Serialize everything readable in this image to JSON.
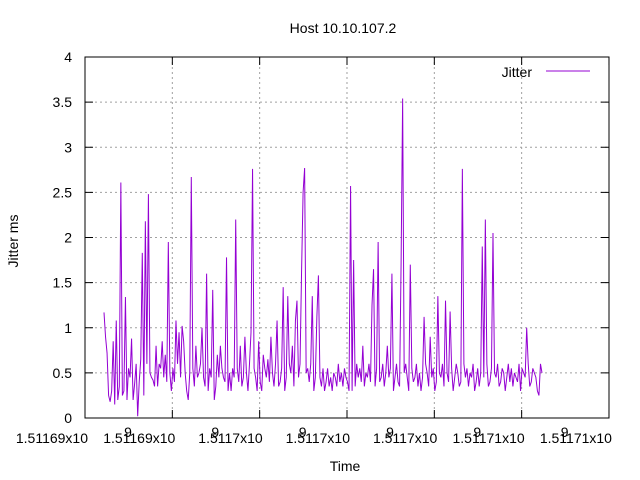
{
  "chart_data": {
    "type": "line",
    "title": "Host 10.10.107.2",
    "xlabel": "Time",
    "ylabel": "Jitter ms",
    "x_tick_labels": [
      "1.51169x10",
      "1.51169x10",
      "1.5117x10",
      "1.5117x10",
      "1.5117x10",
      "1.51171x10",
      "1.51171x10"
    ],
    "x_tick_exponent": "9",
    "y_ticks": [
      "0",
      "0.5",
      "1",
      "1.5",
      "2",
      "2.5",
      "3",
      "3.5",
      "4"
    ],
    "ylim": [
      0,
      4
    ],
    "grid": true,
    "legend": "top-right",
    "series": [
      {
        "name": "Jitter",
        "color": "#9400d3",
        "y": [
          1.17,
          0.9,
          0.72,
          0.25,
          0.18,
          0.3,
          0.85,
          0.15,
          1.08,
          0.2,
          0.35,
          2.61,
          0.25,
          0.3,
          1.34,
          0.2,
          0.55,
          0.45,
          0.88,
          0.2,
          0.38,
          0.6,
          0.02,
          0.4,
          0.65,
          1.83,
          0.25,
          2.18,
          0.6,
          2.48,
          0.5,
          0.45,
          0.42,
          0.35,
          0.8,
          0.35,
          0.6,
          0.55,
          0.85,
          0.45,
          0.7,
          0.4,
          1.95,
          0.5,
          0.3,
          0.55,
          0.4,
          1.08,
          0.6,
          0.95,
          0.45,
          1.02,
          0.85,
          0.5,
          0.3,
          0.2,
          0.5,
          2.67,
          0.55,
          0.35,
          0.8,
          0.45,
          0.5,
          0.6,
          1.0,
          0.45,
          0.35,
          1.6,
          0.3,
          0.55,
          0.45,
          1.42,
          0.2,
          0.35,
          0.7,
          0.45,
          0.8,
          0.55,
          0.45,
          0.4,
          1.78,
          0.3,
          0.5,
          0.3,
          0.55,
          0.45,
          2.2,
          0.55,
          0.4,
          0.8,
          0.35,
          0.45,
          0.9,
          0.5,
          0.3,
          0.6,
          0.95,
          2.76,
          0.55,
          0.45,
          0.3,
          0.85,
          0.4,
          0.3,
          0.7,
          0.55,
          0.45,
          0.65,
          0.4,
          0.9,
          0.5,
          0.35,
          0.6,
          1.08,
          0.35,
          0.4,
          0.55,
          1.45,
          0.3,
          0.45,
          1.35,
          0.6,
          0.5,
          0.8,
          0.35,
          1.08,
          1.3,
          0.45,
          0.6,
          1.62,
          2.5,
          2.77,
          0.5,
          0.55,
          0.4,
          0.6,
          1.35,
          0.3,
          0.45,
          1.12,
          1.58,
          0.45,
          0.35,
          0.55,
          0.3,
          0.4,
          0.55,
          0.35,
          0.45,
          0.3,
          0.5,
          0.45,
          0.35,
          0.6,
          0.4,
          0.5,
          0.35,
          0.55,
          0.45,
          0.4,
          0.3,
          2.57,
          0.3,
          1.75,
          0.35,
          0.6,
          0.45,
          0.55,
          0.4,
          0.8,
          0.35,
          0.5,
          0.45,
          0.6,
          0.4,
          1.25,
          1.65,
          0.35,
          0.55,
          1.95,
          0.4,
          0.45,
          0.6,
          0.35,
          0.5,
          0.8,
          0.45,
          0.55,
          1.6,
          0.3,
          0.45,
          0.6,
          0.4,
          0.35,
          1.72,
          3.54,
          0.5,
          0.6,
          0.45,
          0.3,
          1.7,
          0.55,
          0.4,
          0.45,
          0.6,
          0.35,
          0.5,
          0.3,
          0.45,
          1.12,
          0.6,
          0.5,
          0.35,
          0.9,
          0.45,
          0.55,
          0.3,
          0.4,
          1.35,
          0.5,
          0.45,
          0.6,
          0.35,
          1.3,
          0.5,
          0.4,
          1.18,
          0.55,
          0.3,
          0.45,
          0.6,
          0.5,
          0.35,
          0.4,
          2.76,
          0.6,
          0.45,
          0.55,
          0.35,
          0.5,
          0.45,
          0.6,
          0.3,
          0.4,
          0.55,
          0.35,
          0.5,
          1.9,
          0.45,
          2.2,
          0.6,
          0.35,
          0.4,
          0.55,
          2.05,
          0.5,
          0.45,
          0.6,
          0.35,
          0.4,
          0.55,
          0.5,
          0.3,
          0.45,
          0.6,
          0.4,
          0.55,
          0.35,
          0.5,
          0.45,
          0.4,
          0.6,
          0.3,
          0.55,
          0.5,
          0.45,
          1.0,
          0.6,
          0.35,
          0.4,
          0.55,
          0.5,
          0.45,
          0.3,
          0.25,
          0.6,
          0.5
        ]
      }
    ]
  }
}
